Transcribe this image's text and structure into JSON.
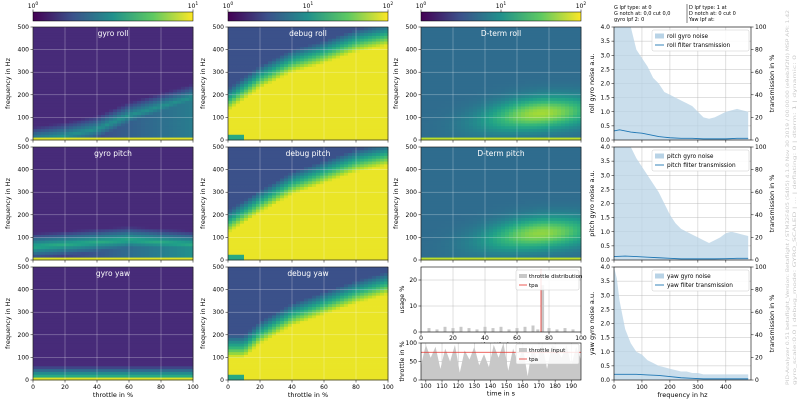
{
  "header": {
    "col1_lines": [
      "G lpf type:  at 0",
      "G notch at: 0,0 cut 0,0",
      "gyro lpf 2: 0"
    ],
    "col2_lines": [
      "D lpf type:  1 at",
      "D notch at: 0 cut 0",
      "Yaw lpf at:"
    ]
  },
  "side_text": [
    "PID-Analyzer 0.51 betaflight_Version: Betaflight / STM32F405 (S405) 4.1.0 Nov 30 2019 / 00:00:00 (e9eb3f2fd) MSP API: 1.42",
    "gyro_scale:0.0 | debug_mode: GYRO_SCALED | ... | deflating: 0 | dterm: 1 | dynamic: 0"
  ],
  "colorbars": [
    {
      "ticks": [
        {
          "base": "10",
          "exp": "0"
        },
        {
          "base": "10",
          "exp": "1"
        }
      ]
    },
    {
      "ticks": [
        {
          "base": "10",
          "exp": "0"
        },
        {
          "base": "10",
          "exp": "1"
        },
        {
          "base": "10",
          "exp": "2"
        }
      ]
    },
    {
      "ticks": [
        {
          "base": "10",
          "exp": "0"
        },
        {
          "base": "10",
          "exp": "1"
        },
        {
          "base": "10",
          "exp": "2"
        }
      ]
    }
  ],
  "heatmap_titles": [
    [
      "gyro roll",
      "debug roll",
      "D-term roll"
    ],
    [
      "gyro pitch",
      "debug pitch",
      "D-term pitch"
    ],
    [
      "gyro yaw",
      "debug yaw"
    ]
  ],
  "heatmap_axes": {
    "xlabel": "throttle in %",
    "ylabel": "frequency in Hz",
    "xticks": [
      "0",
      "20",
      "40",
      "60",
      "80",
      "100"
    ],
    "yticks": [
      "0",
      "100",
      "200",
      "300",
      "400",
      "500"
    ]
  },
  "usage_plot": {
    "ylabel": "usage %",
    "xlabel": "throttle in %",
    "xticks": [
      "0",
      "20",
      "40",
      "60",
      "80",
      "100"
    ],
    "yticks": [
      "0",
      "10",
      "20"
    ],
    "legend": [
      "throttle distribution",
      "tpa"
    ]
  },
  "time_plot": {
    "ylabel": "throttle in %",
    "xlabel": "time in s",
    "xticks": [
      "100",
      "110",
      "120",
      "130",
      "140",
      "150",
      "160",
      "170",
      "180",
      "190"
    ],
    "yticks": [
      "0",
      "50",
      "100"
    ],
    "legend": [
      "throttle input",
      "tpa"
    ]
  },
  "noise_plots": {
    "left_yticks": [
      "0.0",
      "0.5",
      "1.0",
      "1.5",
      "2.0",
      "2.5",
      "3.0",
      "3.5",
      "4.0"
    ],
    "right_yticks": [
      "0",
      "20",
      "40",
      "60",
      "80",
      "100"
    ],
    "right_ylabel": "transmission in %",
    "xticks": [
      "0",
      "100",
      "200",
      "300",
      "400"
    ],
    "xlabel": "frequency in hz",
    "panels": [
      {
        "ylabel": "roll gyro noise a.u.",
        "legend": [
          "roll gyro noise",
          "roll filter transmission"
        ]
      },
      {
        "ylabel": "pitch gyro noise a.u.",
        "legend": [
          "pitch gyro noise",
          "pitch filter transmission"
        ]
      },
      {
        "ylabel": "yaw gyro noise a.u.",
        "legend": [
          "yaw gyro noise",
          "yaw filter transmission"
        ]
      }
    ]
  },
  "colors": {
    "noise_fill": "#b8d3e6",
    "transmission_line": "#1f77b4",
    "tpa_line": "#e8312a",
    "throttle_hist": "#c8c8c8",
    "grid": "#b0b0b0"
  },
  "chart_data": [
    {
      "type": "heatmap",
      "title": "gyro roll",
      "xlabel": "throttle in %",
      "ylabel": "frequency in Hz",
      "xlim": [
        0,
        100
      ],
      "ylim": [
        0,
        500
      ],
      "colorscale": "log",
      "clim": [
        1,
        10
      ],
      "ridge": [
        {
          "x": 0,
          "y": 0
        },
        {
          "x": 20,
          "y": 20
        },
        {
          "x": 40,
          "y": 50
        },
        {
          "x": 60,
          "y": 110
        },
        {
          "x": 80,
          "y": 150
        },
        {
          "x": 100,
          "y": 190
        }
      ],
      "ridge_intensity": 0.55
    },
    {
      "type": "heatmap",
      "title": "gyro pitch",
      "xlabel": "throttle in %",
      "ylabel": "frequency in Hz",
      "xlim": [
        0,
        100
      ],
      "ylim": [
        0,
        500
      ],
      "colorscale": "log",
      "clim": [
        1,
        10
      ],
      "ridge": [
        {
          "x": 0,
          "y": 60
        },
        {
          "x": 20,
          "y": 70
        },
        {
          "x": 40,
          "y": 80
        },
        {
          "x": 60,
          "y": 90
        },
        {
          "x": 80,
          "y": 80
        },
        {
          "x": 100,
          "y": 70
        }
      ],
      "ridge_intensity": 0.7
    },
    {
      "type": "heatmap",
      "title": "gyro yaw",
      "xlabel": "throttle in %",
      "ylabel": "frequency in Hz",
      "xlim": [
        0,
        100
      ],
      "ylim": [
        0,
        500
      ],
      "colorscale": "log",
      "clim": [
        1,
        10
      ],
      "ridge": [
        {
          "x": 0,
          "y": 5
        },
        {
          "x": 100,
          "y": 5
        }
      ],
      "ridge_intensity": 0.9
    },
    {
      "type": "heatmap",
      "title": "debug roll",
      "xlabel": "throttle in %",
      "ylabel": "frequency in Hz",
      "xlim": [
        0,
        100
      ],
      "ylim": [
        0,
        500
      ],
      "colorscale": "log",
      "clim": [
        1,
        100
      ],
      "ridge": [
        {
          "x": 0,
          "y": 130
        },
        {
          "x": 20,
          "y": 230
        },
        {
          "x": 40,
          "y": 300
        },
        {
          "x": 60,
          "y": 340
        },
        {
          "x": 80,
          "y": 390
        },
        {
          "x": 100,
          "y": 420
        }
      ],
      "ridge_intensity": 0.95
    },
    {
      "type": "heatmap",
      "title": "debug pitch",
      "xlabel": "throttle in %",
      "ylabel": "frequency in Hz",
      "xlim": [
        0,
        100
      ],
      "ylim": [
        0,
        500
      ],
      "colorscale": "log",
      "clim": [
        1,
        100
      ],
      "ridge": [
        {
          "x": 0,
          "y": 120
        },
        {
          "x": 20,
          "y": 210
        },
        {
          "x": 40,
          "y": 290
        },
        {
          "x": 60,
          "y": 340
        },
        {
          "x": 80,
          "y": 390
        },
        {
          "x": 100,
          "y": 420
        }
      ],
      "ridge_intensity": 0.95
    },
    {
      "type": "heatmap",
      "title": "debug yaw",
      "xlabel": "throttle in %",
      "ylabel": "frequency in Hz",
      "xlim": [
        0,
        100
      ],
      "ylim": [
        0,
        500
      ],
      "colorscale": "log",
      "clim": [
        1,
        100
      ],
      "ridge": [
        {
          "x": 10,
          "y": 100
        },
        {
          "x": 20,
          "y": 160
        },
        {
          "x": 40,
          "y": 240
        },
        {
          "x": 60,
          "y": 290
        },
        {
          "x": 80,
          "y": 340
        },
        {
          "x": 100,
          "y": 380
        }
      ],
      "ridge_intensity": 0.9
    },
    {
      "type": "heatmap",
      "title": "D-term roll",
      "xlabel": "throttle in %",
      "ylabel": "frequency in Hz",
      "xlim": [
        0,
        100
      ],
      "ylim": [
        0,
        500
      ],
      "colorscale": "log",
      "clim": [
        1,
        100
      ],
      "ridge": [
        {
          "x": 0,
          "y": 40
        },
        {
          "x": 40,
          "y": 90
        },
        {
          "x": 60,
          "y": 110
        },
        {
          "x": 75,
          "y": 120
        },
        {
          "x": 100,
          "y": 130
        }
      ],
      "ridge_intensity": 0.85
    },
    {
      "type": "heatmap",
      "title": "D-term pitch",
      "xlabel": "throttle in %",
      "ylabel": "frequency in Hz",
      "xlim": [
        0,
        100
      ],
      "ylim": [
        0,
        500
      ],
      "colorscale": "log",
      "clim": [
        1,
        100
      ],
      "ridge": [
        {
          "x": 0,
          "y": 40
        },
        {
          "x": 40,
          "y": 90
        },
        {
          "x": 60,
          "y": 110
        },
        {
          "x": 75,
          "y": 120
        },
        {
          "x": 100,
          "y": 130
        }
      ],
      "ridge_intensity": 0.8
    },
    {
      "type": "bar",
      "title": "",
      "xlabel": "throttle in %",
      "ylabel": "usage %",
      "xlim": [
        0,
        100
      ],
      "ylim": [
        0,
        25
      ],
      "series": [
        {
          "name": "throttle distribution",
          "x": [
            5,
            10,
            15,
            20,
            25,
            30,
            35,
            40,
            45,
            50,
            55,
            60,
            65,
            70,
            73,
            76,
            80,
            85,
            90,
            95
          ],
          "values": [
            1.5,
            1,
            2,
            1.5,
            2,
            1.5,
            1,
            2,
            1.5,
            2,
            1,
            1.5,
            2,
            2.5,
            1,
            18,
            1.5,
            1,
            1.5,
            1
          ]
        },
        {
          "name": "tpa",
          "type": "line",
          "x": [
            75,
            75
          ],
          "values": [
            0,
            24
          ]
        }
      ]
    },
    {
      "type": "area",
      "title": "",
      "xlabel": "time in s",
      "ylabel": "throttle in %",
      "xlim": [
        97,
        196
      ],
      "ylim": [
        0,
        100
      ],
      "series": [
        {
          "name": "throttle input",
          "x": [
            97,
            100,
            103,
            106,
            109,
            112,
            115,
            118,
            121,
            124,
            127,
            130,
            133,
            136,
            139,
            142,
            145,
            148,
            151,
            154,
            157,
            160,
            163,
            166,
            169,
            172,
            175,
            178,
            181,
            184,
            187,
            190,
            193,
            196
          ],
          "values": [
            40,
            95,
            60,
            90,
            30,
            85,
            50,
            95,
            20,
            80,
            55,
            90,
            40,
            70,
            35,
            95,
            60,
            100,
            25,
            85,
            45,
            90,
            10,
            95,
            50,
            100,
            30,
            95,
            85,
            60,
            95,
            40,
            90,
            55
          ]
        },
        {
          "name": "tpa",
          "type": "line",
          "x": [
            97,
            196
          ],
          "values": [
            75,
            75
          ]
        }
      ]
    },
    {
      "type": "area",
      "title": "",
      "xlabel": "frequency in hz",
      "ylabel": "roll gyro noise a.u.",
      "xlim": [
        0,
        490
      ],
      "ylim": [
        0,
        4
      ],
      "ylabel_right": "transmission in %",
      "ylim_right": [
        0,
        100
      ],
      "series": [
        {
          "name": "roll gyro noise",
          "x": [
            0,
            20,
            40,
            60,
            80,
            100,
            120,
            140,
            160,
            180,
            200,
            220,
            240,
            260,
            280,
            300,
            320,
            340,
            360,
            380,
            400,
            420,
            440,
            460,
            480
          ],
          "values": [
            4,
            4,
            4,
            4,
            3.2,
            2.9,
            2.6,
            2.2,
            2,
            1.7,
            1.6,
            1.5,
            1.4,
            1.3,
            1.2,
            1,
            0.8,
            0.75,
            0.8,
            0.9,
            1,
            1.05,
            1.1,
            1.05,
            1.0
          ]
        },
        {
          "name": "roll filter transmission",
          "axis": "right",
          "x": [
            0,
            20,
            40,
            60,
            80,
            100,
            120,
            140,
            160,
            180,
            200,
            240,
            280,
            320,
            360,
            400,
            440,
            480
          ],
          "values": [
            8,
            9,
            8,
            7,
            6.5,
            6,
            5,
            4,
            3,
            2.5,
            2,
            1.5,
            1.5,
            1,
            1,
            1,
            1.5,
            1.5
          ]
        }
      ]
    },
    {
      "type": "area",
      "title": "",
      "xlabel": "frequency in hz",
      "ylabel": "pitch gyro noise a.u.",
      "xlim": [
        0,
        490
      ],
      "ylim": [
        0,
        4
      ],
      "ylabel_right": "transmission in %",
      "ylim_right": [
        0,
        100
      ],
      "series": [
        {
          "name": "pitch gyro noise",
          "x": [
            0,
            20,
            40,
            60,
            80,
            100,
            120,
            140,
            160,
            180,
            200,
            220,
            240,
            260,
            280,
            300,
            320,
            340,
            360,
            380,
            400,
            420,
            440,
            460,
            480
          ],
          "values": [
            4,
            4,
            4,
            4,
            3.6,
            3.3,
            3,
            2.7,
            2.4,
            2,
            1.6,
            1.3,
            1.1,
            1,
            0.9,
            0.8,
            0.7,
            0.6,
            0.7,
            0.8,
            0.95,
            1,
            0.95,
            0.9,
            0.85
          ]
        },
        {
          "name": "pitch filter transmission",
          "axis": "right",
          "x": [
            0,
            40,
            80,
            120,
            160,
            200,
            240,
            280,
            320,
            360,
            400,
            440,
            480
          ],
          "values": [
            3,
            3.5,
            3,
            2.5,
            2,
            1.5,
            1,
            1,
            1,
            1,
            1.2,
            1.5,
            1.5
          ]
        }
      ]
    },
    {
      "type": "area",
      "title": "",
      "xlabel": "frequency in hz",
      "ylabel": "yaw gyro noise a.u.",
      "xlim": [
        0,
        490
      ],
      "ylim": [
        0,
        4
      ],
      "ylabel_right": "transmission in %",
      "ylim_right": [
        0,
        100
      ],
      "series": [
        {
          "name": "yaw gyro noise",
          "x": [
            0,
            10,
            20,
            40,
            60,
            80,
            100,
            120,
            140,
            160,
            180,
            200,
            220,
            240,
            260,
            280,
            300,
            320,
            340,
            360,
            380,
            400,
            420,
            440,
            460,
            480
          ],
          "values": [
            4,
            3.6,
            2.8,
            1.8,
            1.3,
            1,
            0.9,
            0.7,
            0.6,
            0.5,
            0.45,
            0.4,
            0.35,
            0.3,
            0.3,
            0.25,
            0.25,
            0.2,
            0.2,
            0.2,
            0.2,
            0.2,
            0.2,
            0.2,
            0.2,
            0.2
          ]
        },
        {
          "name": "yaw filter transmission",
          "axis": "right",
          "x": [
            0,
            40,
            80,
            120,
            160,
            200,
            240,
            280,
            320,
            360,
            400,
            440,
            480
          ],
          "values": [
            5,
            5,
            5,
            4.5,
            4,
            3,
            2,
            1.5,
            1,
            1,
            1,
            1,
            1
          ]
        }
      ]
    }
  ]
}
